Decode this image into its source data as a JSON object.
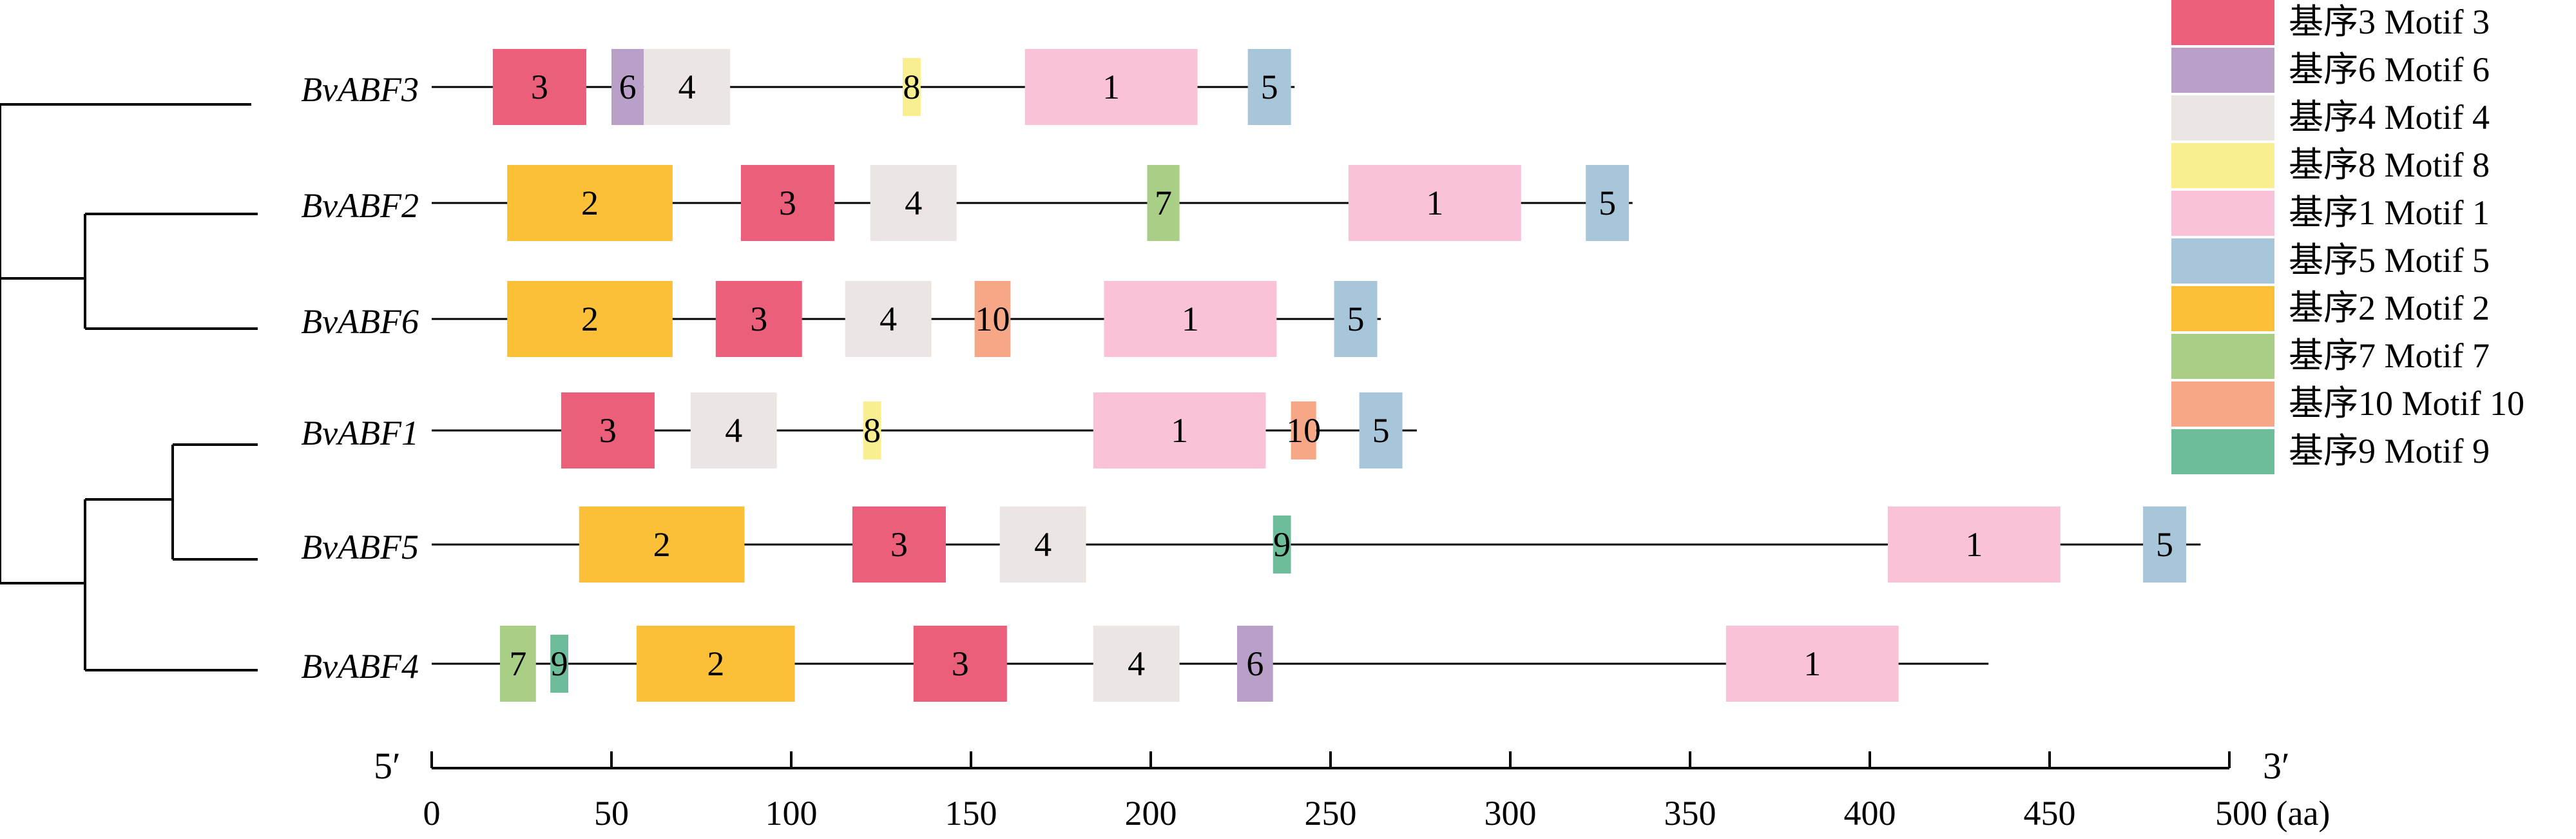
{
  "chart_data": {
    "type": "motif-diagram",
    "x_axis": {
      "min": 0,
      "max": 500,
      "ticks": [
        0,
        50,
        100,
        150,
        200,
        250,
        300,
        350,
        400,
        450,
        500
      ],
      "tick_labels": [
        "0",
        "50",
        "100",
        "150",
        "200",
        "250",
        "300",
        "350",
        "400",
        "450",
        "500 (aa)"
      ],
      "left_end_label": "5′",
      "right_end_label": "3′"
    },
    "tree": {
      "root": [
        "BvABF3",
        [
          [
            "BvABF2",
            "BvABF6"
          ],
          [
            [
              "BvABF1",
              "BvABF5"
            ],
            "BvABF4"
          ]
        ]
      ]
    },
    "motif_colors": {
      "1": "#F9C2D8",
      "2": "#FBBF38",
      "3": "#EB5F7A",
      "4": "#EBE5E3",
      "5": "#A8C6DA",
      "6": "#B8A0C8",
      "7": "#A9CF86",
      "8": "#F9EE90",
      "9": "#6EBD9A",
      "10": "#F6A886"
    },
    "legend": [
      {
        "motif": "3",
        "label": "基序3 Motif 3"
      },
      {
        "motif": "6",
        "label": "基序6 Motif 6"
      },
      {
        "motif": "4",
        "label": "基序4 Motif 4"
      },
      {
        "motif": "8",
        "label": "基序8 Motif 8"
      },
      {
        "motif": "1",
        "label": "基序1 Motif 1"
      },
      {
        "motif": "5",
        "label": "基序5 Motif 5"
      },
      {
        "motif": "2",
        "label": "基序2 Motif 2"
      },
      {
        "motif": "7",
        "label": "基序7 Motif 7"
      },
      {
        "motif": "10",
        "label": "基序10 Motif 10"
      },
      {
        "motif": "9",
        "label": "基序9 Motif 9"
      }
    ],
    "proteins": [
      {
        "name": "BvABF3",
        "length": 240,
        "motifs": [
          {
            "id": "3",
            "start": 17,
            "end": 43
          },
          {
            "id": "6",
            "start": 50,
            "end": 59
          },
          {
            "id": "4",
            "start": 59,
            "end": 83
          },
          {
            "id": "8",
            "start": 131,
            "end": 136
          },
          {
            "id": "1",
            "start": 165,
            "end": 213
          },
          {
            "id": "5",
            "start": 227,
            "end": 239
          }
        ]
      },
      {
        "name": "BvABF2",
        "length": 334,
        "motifs": [
          {
            "id": "2",
            "start": 21,
            "end": 67
          },
          {
            "id": "3",
            "start": 86,
            "end": 112
          },
          {
            "id": "4",
            "start": 122,
            "end": 146
          },
          {
            "id": "7",
            "start": 199,
            "end": 208
          },
          {
            "id": "1",
            "start": 255,
            "end": 303
          },
          {
            "id": "5",
            "start": 321,
            "end": 333
          }
        ]
      },
      {
        "name": "BvABF6",
        "length": 264,
        "motifs": [
          {
            "id": "2",
            "start": 21,
            "end": 67
          },
          {
            "id": "3",
            "start": 79,
            "end": 103
          },
          {
            "id": "4",
            "start": 115,
            "end": 139
          },
          {
            "id": "10",
            "start": 151,
            "end": 161
          },
          {
            "id": "1",
            "start": 187,
            "end": 235
          },
          {
            "id": "5",
            "start": 251,
            "end": 263
          }
        ]
      },
      {
        "name": "BvABF1",
        "length": 274,
        "motifs": [
          {
            "id": "3",
            "start": 36,
            "end": 62
          },
          {
            "id": "4",
            "start": 72,
            "end": 96
          },
          {
            "id": "8",
            "start": 120,
            "end": 125
          },
          {
            "id": "1",
            "start": 184,
            "end": 232
          },
          {
            "id": "10",
            "start": 239,
            "end": 246
          },
          {
            "id": "5",
            "start": 258,
            "end": 270
          }
        ]
      },
      {
        "name": "BvABF5",
        "length": 492,
        "motifs": [
          {
            "id": "2",
            "start": 41,
            "end": 87
          },
          {
            "id": "3",
            "start": 117,
            "end": 143
          },
          {
            "id": "4",
            "start": 158,
            "end": 182
          },
          {
            "id": "9",
            "start": 234,
            "end": 239
          },
          {
            "id": "1",
            "start": 405,
            "end": 453
          },
          {
            "id": "5",
            "start": 476,
            "end": 488
          }
        ]
      },
      {
        "name": "BvABF4",
        "length": 433,
        "motifs": [
          {
            "id": "7",
            "start": 19,
            "end": 29
          },
          {
            "id": "9",
            "start": 33,
            "end": 38
          },
          {
            "id": "2",
            "start": 57,
            "end": 101
          },
          {
            "id": "3",
            "start": 134,
            "end": 160
          },
          {
            "id": "4",
            "start": 184,
            "end": 208
          },
          {
            "id": "6",
            "start": 224,
            "end": 234
          },
          {
            "id": "1",
            "start": 360,
            "end": 408
          }
        ]
      }
    ]
  }
}
